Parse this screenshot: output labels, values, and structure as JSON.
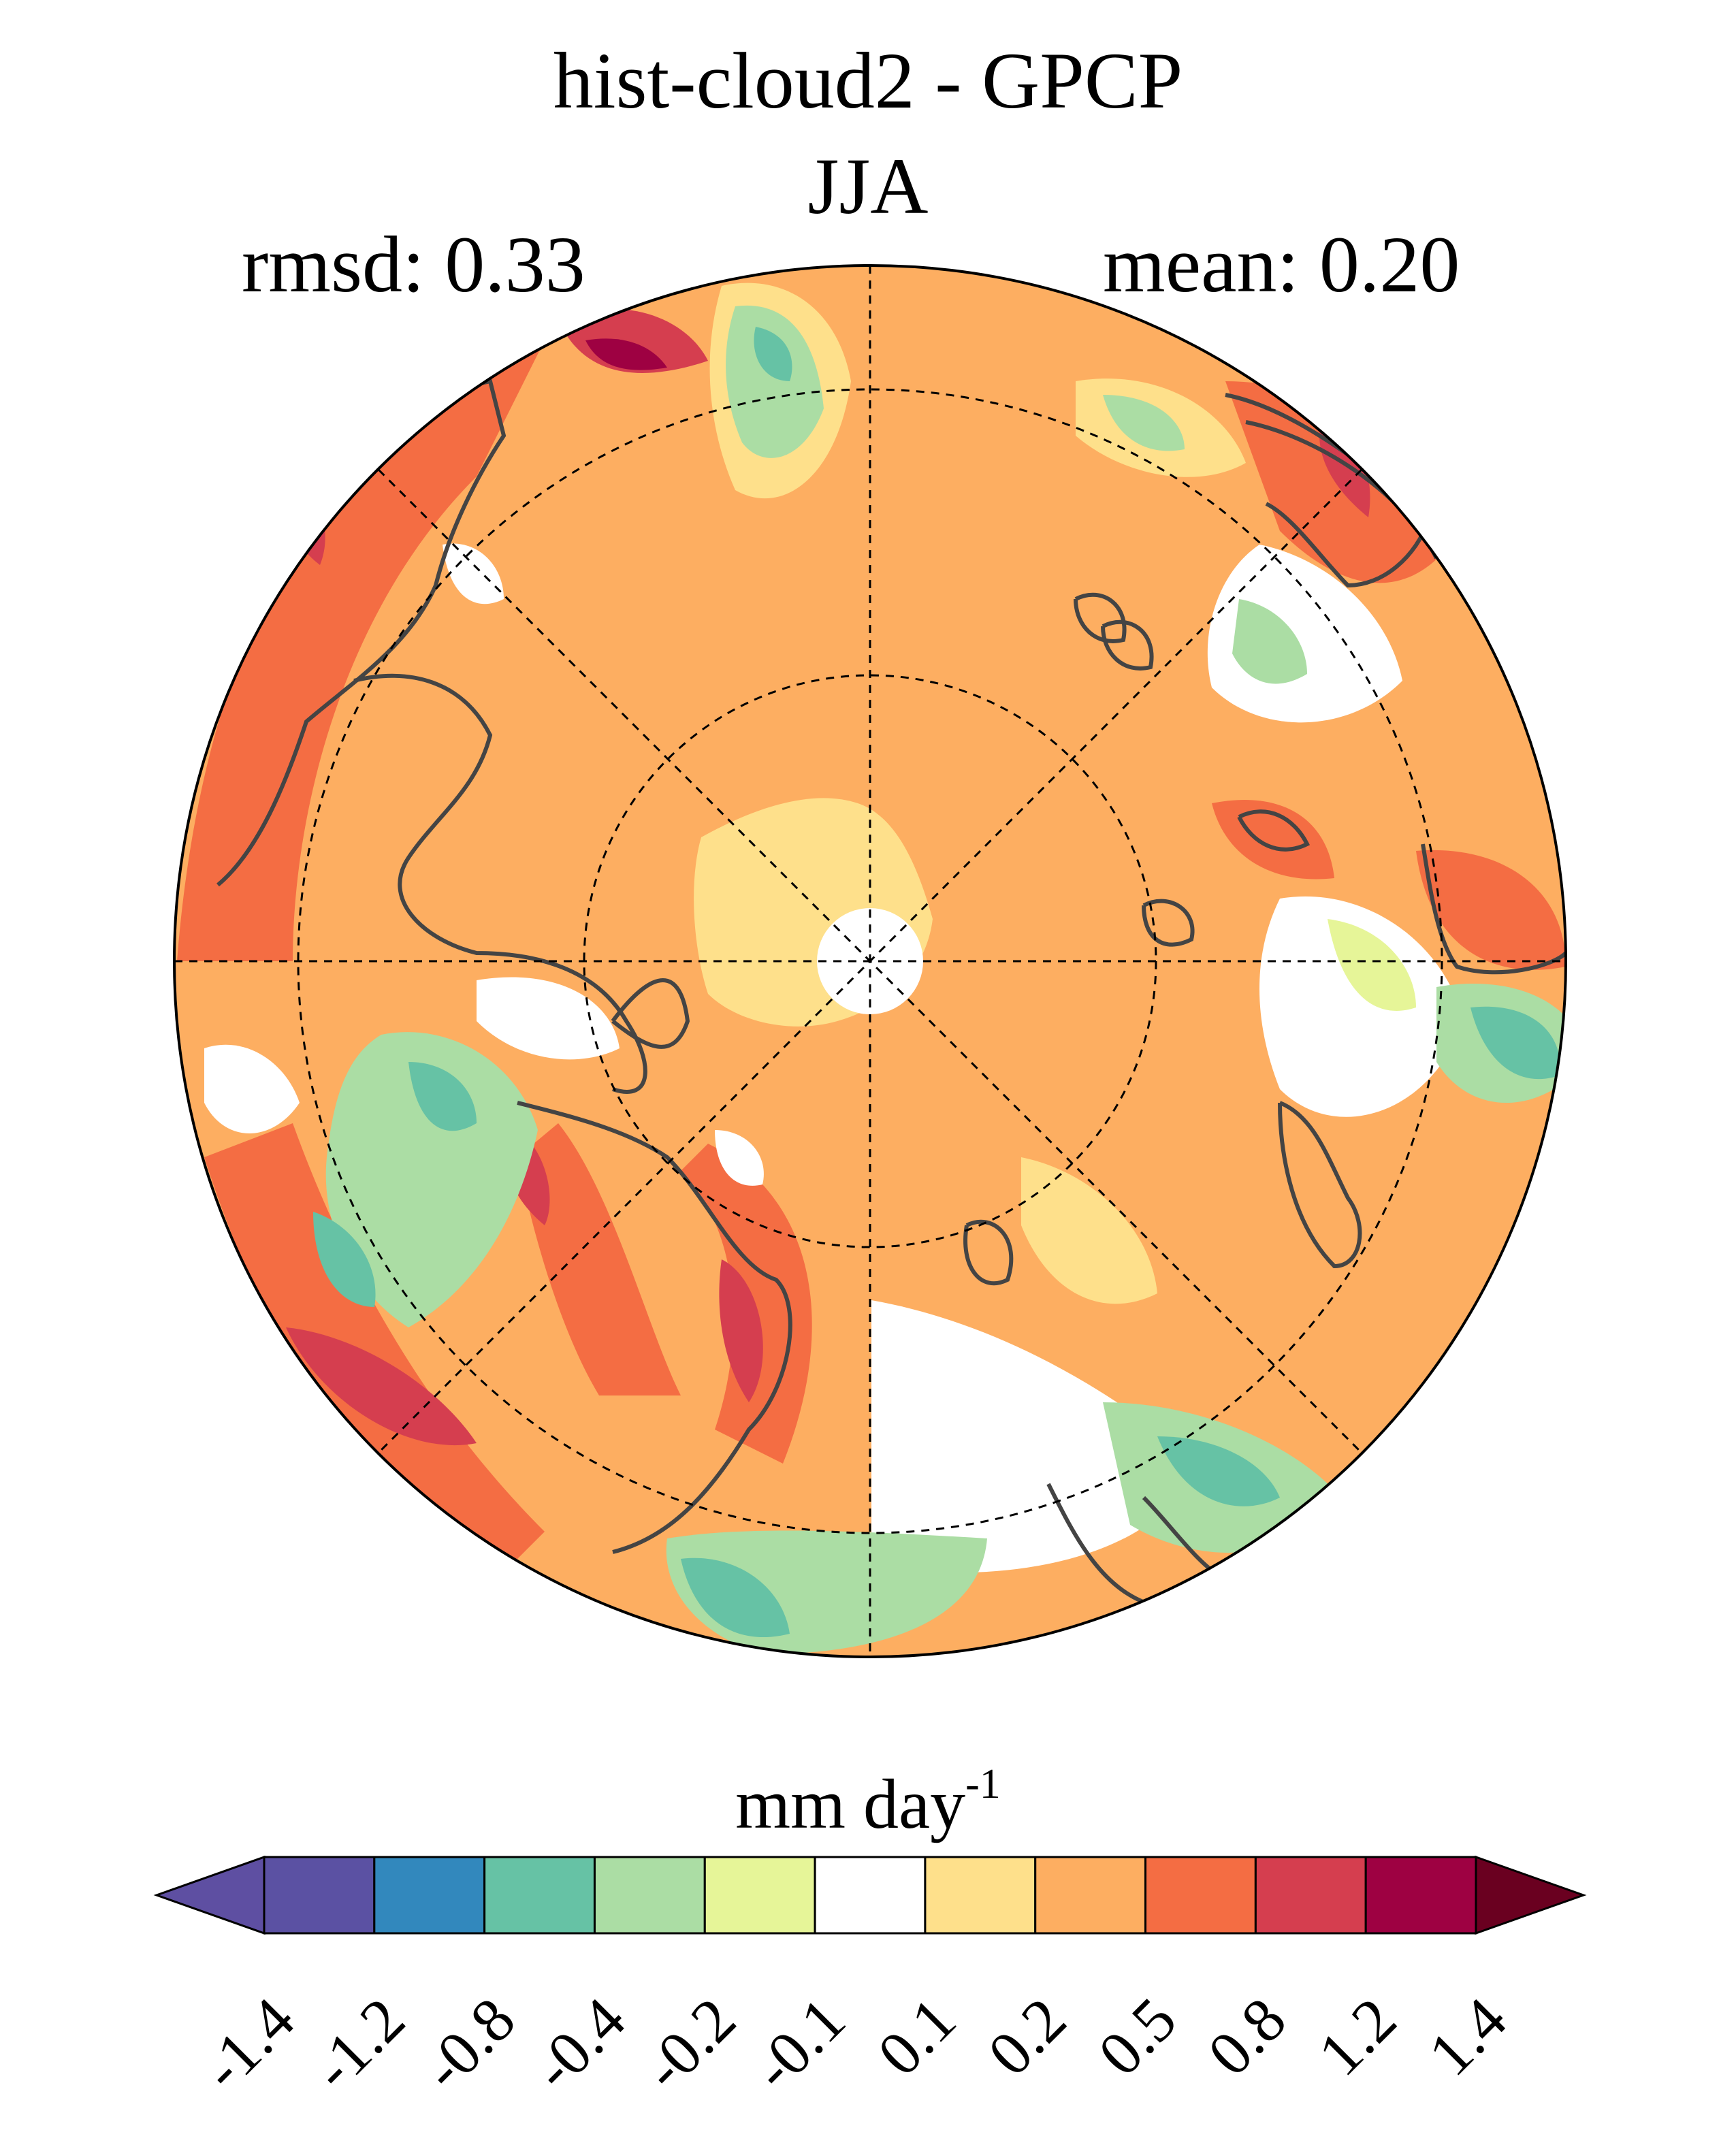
{
  "title": "hist-cloud2 - GPCP",
  "subtitle": "JJA",
  "stats": {
    "rmsd_label": "rmsd: 0.33",
    "mean_label": "mean: 0.20",
    "rmsd": 0.33,
    "mean": 0.2
  },
  "map": {
    "projection": "north polar stereographic",
    "variable": "precipitation difference (model minus observations)"
  },
  "colorbar": {
    "units_base": "mm day",
    "units_exp": "-1",
    "levels": [
      "-1.4",
      "-1.2",
      "-0.8",
      "-0.4",
      "-0.2",
      "-0.1",
      "0.1",
      "0.2",
      "0.5",
      "0.8",
      "1.2",
      "1.4"
    ],
    "colors": [
      "#5e4fa2",
      "#5b51a3",
      "#3288bd",
      "#66c2a5",
      "#abdda4",
      "#e6f598",
      "#ffffff",
      "#fee08b",
      "#fdae61",
      "#f46d43",
      "#d53e4f",
      "#9e0142",
      "#6a0020"
    ]
  }
}
